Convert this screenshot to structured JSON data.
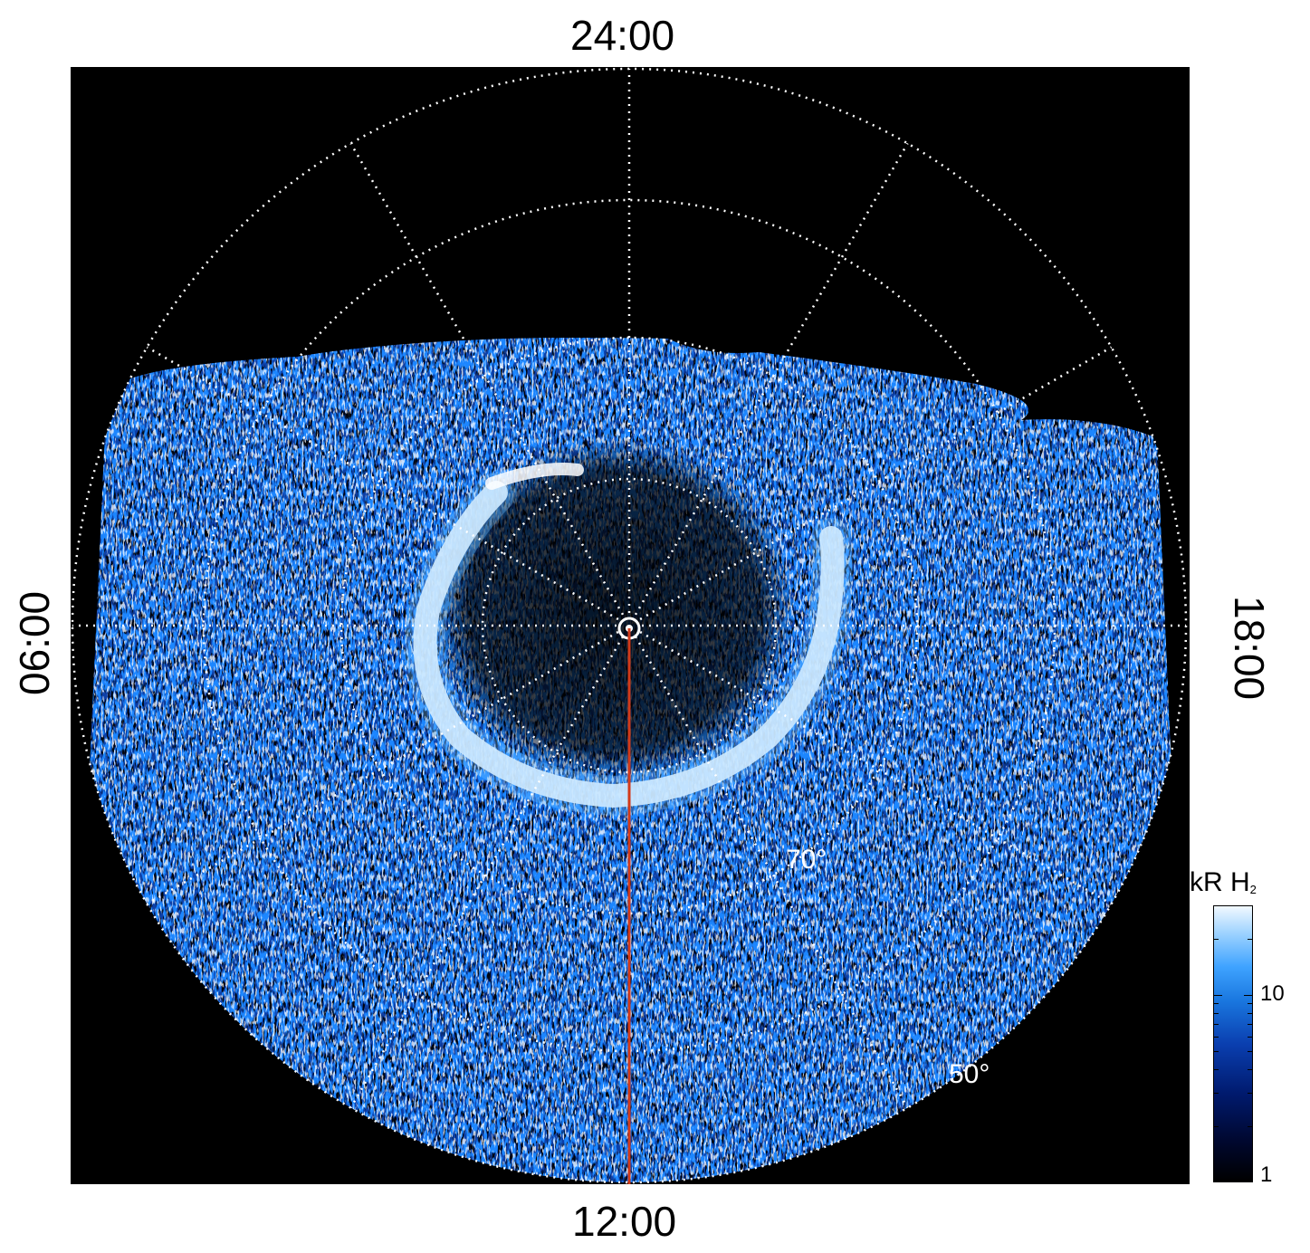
{
  "axis_labels": {
    "top": "24:00",
    "bottom": "12:00",
    "left": "06:00",
    "right": "18:00"
  },
  "latitude_labels": {
    "inner": "70°",
    "outer": "50°"
  },
  "colorbar": {
    "title": "kR H",
    "title_subscript": "2",
    "ticks": [
      "10",
      "1"
    ],
    "colors": [
      "#000000",
      "#001a6e",
      "#1a78e0",
      "#3fa3ff",
      "#f2f9ff"
    ]
  },
  "colors": {
    "meridian_line": "#d23a1a",
    "grid": "#ffffff",
    "background": "#000000",
    "emission_bright": "#ffffff",
    "emission_mid": "#1e88ff",
    "emission_dim": "#0a3a9a"
  }
}
